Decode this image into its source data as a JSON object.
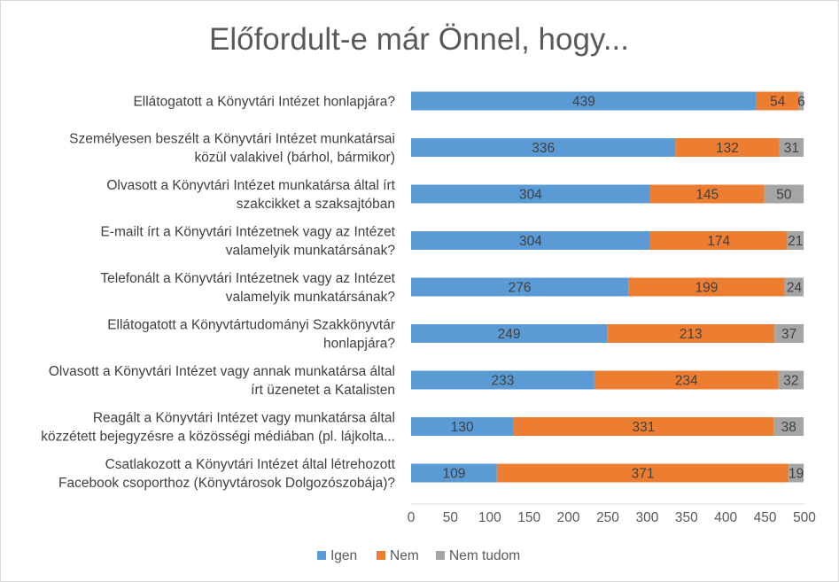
{
  "chart_data": {
    "type": "bar",
    "orientation": "horizontal",
    "stacked": true,
    "title": "Előfordult-e már Önnel, hogy...",
    "categories": [
      [
        "Ellátogatott a Könyvtári Intézet honlapjára?"
      ],
      [
        "Személyesen beszélt a Könyvtári Intézet munkatársai",
        "közül valakivel (bárhol, bármikor)"
      ],
      [
        "Olvasott a Könyvtári Intézet munkatársa által írt",
        "szakcikket a szaksajtóban"
      ],
      [
        "E-mailt írt a Könyvtári Intézetnek vagy az Intézet",
        "valamelyik munkatársának?"
      ],
      [
        "Telefonált a Könyvtári Intézetnek vagy az Intézet",
        "valamelyik munkatársának?"
      ],
      [
        "Ellátogatott a Könyvtártudományi Szakkönyvtár",
        "honlapjára?"
      ],
      [
        "Olvasott a Könyvtári Intézet vagy annak munkatársa által",
        "írt üzenetet a Katalisten"
      ],
      [
        "Reagált a Könyvtári Intézet vagy munkatársa által",
        "közzétett bejegyzésre a közösségi médiában (pl. lájkolta..."
      ],
      [
        "Csatlakozott  a Könyvtári Intézet által létrehozott",
        "Facebook csoporthoz (Könyvtárosok Dolgozószobája)?"
      ]
    ],
    "series": [
      {
        "name": "Igen",
        "color": "#5b9bd5",
        "values": [
          439,
          336,
          304,
          304,
          276,
          249,
          233,
          130,
          109
        ]
      },
      {
        "name": "Nem",
        "color": "#ed7d31",
        "values": [
          54,
          132,
          145,
          174,
          199,
          213,
          234,
          331,
          371
        ]
      },
      {
        "name": "Nem tudom",
        "color": "#a5a5a5",
        "values": [
          6,
          31,
          50,
          21,
          24,
          37,
          32,
          38,
          19
        ]
      }
    ],
    "xlim": [
      0,
      500
    ],
    "xticks": [
      0,
      50,
      100,
      150,
      200,
      250,
      300,
      350,
      400,
      450,
      500
    ],
    "grid": false,
    "legend": "bottom",
    "data_labels": true
  }
}
